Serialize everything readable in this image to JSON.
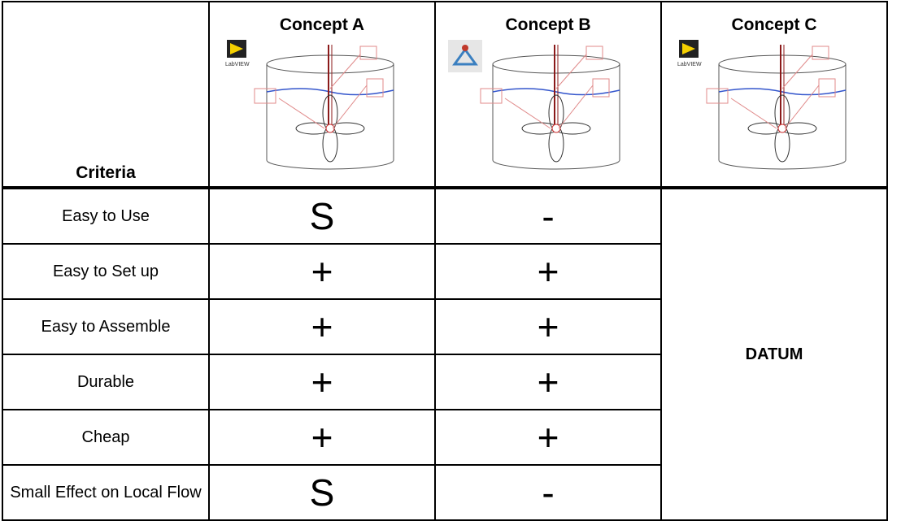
{
  "header": {
    "criteria_label": "Criteria",
    "concepts": [
      {
        "name": "Concept A",
        "icon_label": "LabVIEW"
      },
      {
        "name": "Concept B"
      },
      {
        "name": "Concept C",
        "icon_label": "LabVIEW"
      }
    ]
  },
  "table": {
    "rows": [
      [
        "Easy to Use",
        "S",
        "-"
      ],
      [
        "Easy to Set up",
        "+",
        "+"
      ],
      [
        "Easy to Assemble",
        "+",
        "+"
      ],
      [
        "Durable",
        "+",
        "+"
      ],
      [
        "Cheap",
        "+",
        "+"
      ],
      [
        "Small Effect on Local Flow",
        "S",
        "-"
      ]
    ],
    "datum": "DATUM"
  }
}
